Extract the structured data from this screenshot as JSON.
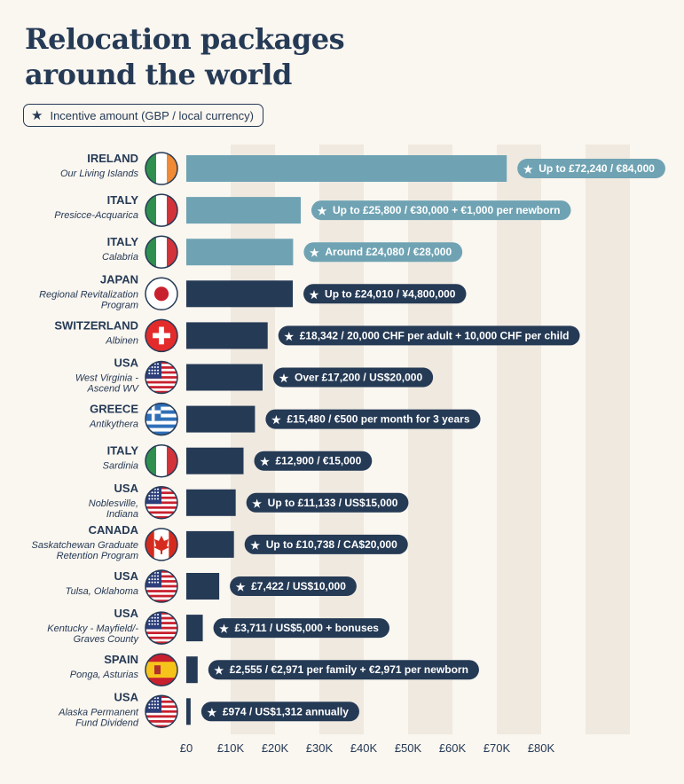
{
  "header": {
    "title_line1": "Relocation packages",
    "title_line2": "around the world"
  },
  "legend": {
    "label": "Incentive amount (GBP / local currency)",
    "icon": "star-icon"
  },
  "colors": {
    "teal": "#6fa3b3",
    "navy": "#253a55",
    "grid_band": "#efe9e0",
    "background": "#faf6f0"
  },
  "chart_data": {
    "type": "bar",
    "orientation": "horizontal",
    "xlim": [
      0,
      90000
    ],
    "x_ticks": [
      0,
      10000,
      20000,
      30000,
      40000,
      50000,
      60000,
      70000,
      80000
    ],
    "x_tick_labels": [
      "£0",
      "£10K",
      "£20K",
      "£30K",
      "£40K",
      "£50K",
      "£60K",
      "£70K",
      "£80K"
    ],
    "grid": "alternating vertical bands",
    "legend_position": "top-left",
    "rows": [
      {
        "country": "IRELAND",
        "location": [
          "Our Living Islands"
        ],
        "flag": "ireland-flag-icon",
        "value": 72240,
        "label": "Up to £72,240 / €84,000",
        "color": "teal"
      },
      {
        "country": "ITALY",
        "location": [
          "Presicce-Acquarica"
        ],
        "flag": "italy-flag-icon",
        "value": 25800,
        "label": "Up to £25,800 / €30,000 + €1,000 per newborn",
        "color": "teal"
      },
      {
        "country": "ITALY",
        "location": [
          "Calabria"
        ],
        "flag": "italy-flag-icon",
        "value": 24080,
        "label": "Around £24,080 / €28,000",
        "color": "teal"
      },
      {
        "country": "JAPAN",
        "location": [
          "Regional Revitalization",
          "Program"
        ],
        "flag": "japan-flag-icon",
        "value": 24010,
        "label": "Up to £24,010 / ¥4,800,000",
        "color": "navy"
      },
      {
        "country": "SWITZERLAND",
        "location": [
          "Albinen"
        ],
        "flag": "switzerland-flag-icon",
        "value": 18342,
        "label": "£18,342 / 20,000 CHF per adult + 10,000 CHF per child",
        "color": "navy"
      },
      {
        "country": "USA",
        "location": [
          "West Virginia -",
          "Ascend WV"
        ],
        "flag": "usa-flag-icon",
        "value": 17200,
        "label": "Over £17,200 / US$20,000",
        "color": "navy"
      },
      {
        "country": "GREECE",
        "location": [
          "Antikythera"
        ],
        "flag": "greece-flag-icon",
        "value": 15480,
        "label": "£15,480 / €500 per month for 3 years",
        "color": "navy"
      },
      {
        "country": "ITALY",
        "location": [
          "Sardinia"
        ],
        "flag": "italy-flag-icon",
        "value": 12900,
        "label": "£12,900 / €15,000",
        "color": "navy"
      },
      {
        "country": "USA",
        "location": [
          "Noblesville,",
          "Indiana"
        ],
        "flag": "usa-flag-icon",
        "value": 11133,
        "label": "Up to £11,133 / US$15,000",
        "color": "navy"
      },
      {
        "country": "CANADA",
        "location": [
          "Saskatchewan Graduate",
          "Retention Program"
        ],
        "flag": "canada-flag-icon",
        "value": 10738,
        "label": "Up to £10,738 / CA$20,000",
        "color": "navy"
      },
      {
        "country": "USA",
        "location": [
          "Tulsa, Oklahoma"
        ],
        "flag": "usa-flag-icon",
        "value": 7422,
        "label": "£7,422 / US$10,000",
        "color": "navy"
      },
      {
        "country": "USA",
        "location": [
          "Kentucky - Mayfield/-",
          "Graves County"
        ],
        "flag": "usa-flag-icon",
        "value": 3711,
        "label": "£3,711 / US$5,000 + bonuses",
        "color": "navy"
      },
      {
        "country": "SPAIN",
        "location": [
          "Ponga, Asturias"
        ],
        "flag": "spain-flag-icon",
        "value": 2555,
        "label": "£2,555 / €2,971 per family + €2,971 per newborn",
        "color": "navy"
      },
      {
        "country": "USA",
        "location": [
          "Alaska Permanent",
          "Fund Dividend"
        ],
        "flag": "usa-flag-icon",
        "value": 974,
        "label": "£974 / US$1,312 annually",
        "color": "navy"
      }
    ]
  }
}
